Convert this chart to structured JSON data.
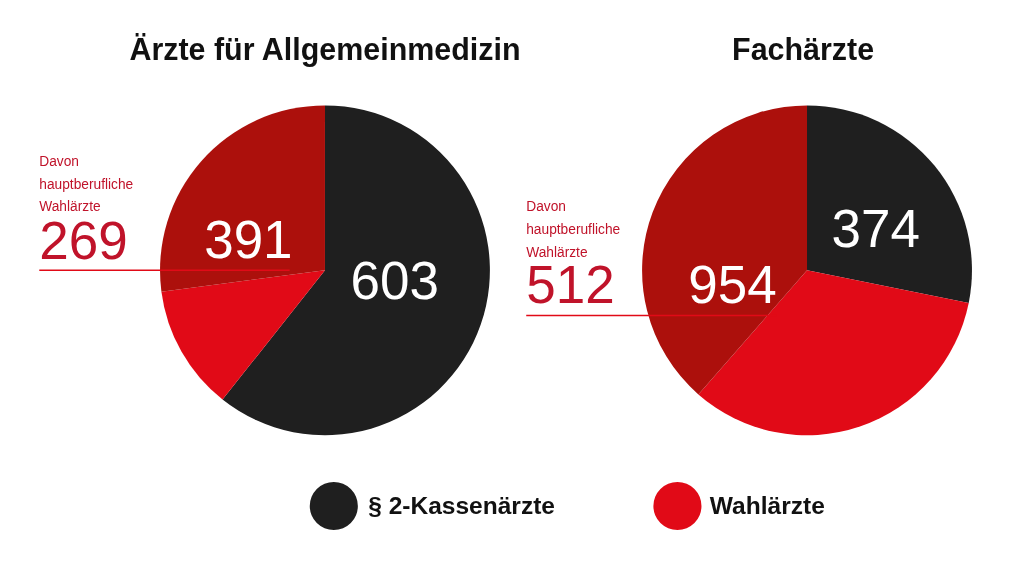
{
  "chart_data": [
    {
      "type": "pie",
      "title": "Ärzte für Allgemeinmedizin",
      "categories": [
        "§ 2-Kassenärzte",
        "Wahlärzte",
        null
      ],
      "values": [
        603,
        122,
        269
      ],
      "colors": [
        "#1f1f1f",
        "#e10a17",
        "#ac100c"
      ],
      "value_labels": [
        "603",
        null,
        null
      ],
      "annotations": [
        "Davon\nhauptberufliche\nWahlärzte",
        "269",
        "391"
      ],
      "legend": "bottom"
    },
    {
      "type": "pie",
      "title": "Fachärzte",
      "categories": [
        null,
        null,
        null
      ],
      "values": [
        374,
        442,
        512
      ],
      "colors": [
        "#1f1f1f",
        "#e10a17",
        "#ac100c"
      ],
      "value_labels": [
        "374",
        null,
        null
      ],
      "annotations": [
        "Davon\nhauptberufliche\nWahlärzte",
        "512",
        "954"
      ]
    }
  ]
}
